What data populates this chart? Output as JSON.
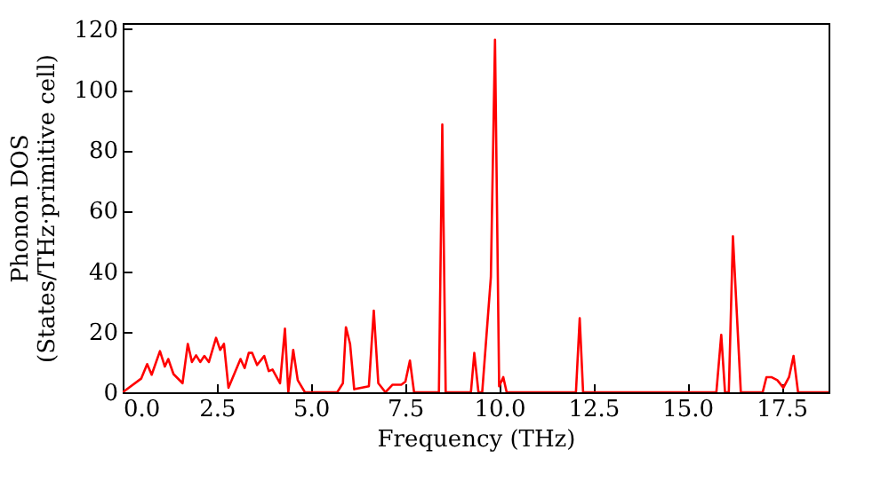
{
  "chart_data": {
    "type": "line",
    "xlabel": "Frequency (THz)",
    "ylabel": "Phonon DOS\n(States/THz·primitive cell)",
    "xlim": [
      0,
      18.75
    ],
    "xticks": [
      {
        "value": 0,
        "label": "0.0"
      },
      {
        "value": 2.5,
        "label": "2.5"
      },
      {
        "value": 5,
        "label": "5.0"
      },
      {
        "value": 7.5,
        "label": "7.5"
      },
      {
        "value": 10,
        "label": "10.0"
      },
      {
        "value": 12.5,
        "label": "12.5"
      },
      {
        "value": 15,
        "label": "15.0"
      },
      {
        "value": 17.5,
        "label": "17.5"
      }
    ],
    "ylim": [
      0,
      122
    ],
    "yticks": [
      0,
      20,
      40,
      60,
      80,
      100,
      120
    ],
    "grid": false,
    "line_style": "solid",
    "series": [
      {
        "color": "#ff0000",
        "x": [
          0,
          0.49,
          0.65,
          0.77,
          0.99,
          1.12,
          1.21,
          1.35,
          1.59,
          1.73,
          1.84,
          1.95,
          2.06,
          2.17,
          2.29,
          2.48,
          2.59,
          2.69,
          2.81,
          3.13,
          3.24,
          3.35,
          3.44,
          3.57,
          3.76,
          3.88,
          3.98,
          4.18,
          4.31,
          4.4,
          4.53,
          4.65,
          4.84,
          5.7,
          5.85,
          5.93,
          6.04,
          6.15,
          6.54,
          6.67,
          6.79,
          6.98,
          7.17,
          7.4,
          7.51,
          7.63,
          7.74,
          8.4,
          8.49,
          8.58,
          9.25,
          9.34,
          9.45,
          9.55,
          9.78,
          9.89,
          10.0,
          10.11,
          10.2,
          12.04,
          12.14,
          12.23,
          15.77,
          15.9,
          16.0,
          16.1,
          16.21,
          16.42,
          17.0,
          17.1,
          17.23,
          17.39,
          17.55,
          17.7,
          17.82,
          17.94,
          18.75
        ],
        "values": [
          0,
          4.5,
          9.3,
          5.8,
          13.6,
          8.5,
          11,
          6,
          3,
          16,
          10,
          12.2,
          10,
          12,
          10,
          18,
          14,
          16,
          1.5,
          11,
          8,
          13,
          13,
          9,
          12,
          7,
          7.5,
          3,
          21,
          0,
          14,
          4,
          0,
          0,
          3,
          21.5,
          16,
          1,
          2,
          27,
          3,
          0,
          2.5,
          2.5,
          3.5,
          10.5,
          0,
          0,
          88.5,
          0,
          0,
          13,
          0,
          0,
          38,
          116.5,
          2,
          5,
          0,
          0,
          24.5,
          0,
          0,
          19,
          0,
          0,
          51.5,
          0,
          0,
          5,
          5,
          4,
          1.5,
          5,
          12,
          0,
          0
        ]
      }
    ]
  }
}
